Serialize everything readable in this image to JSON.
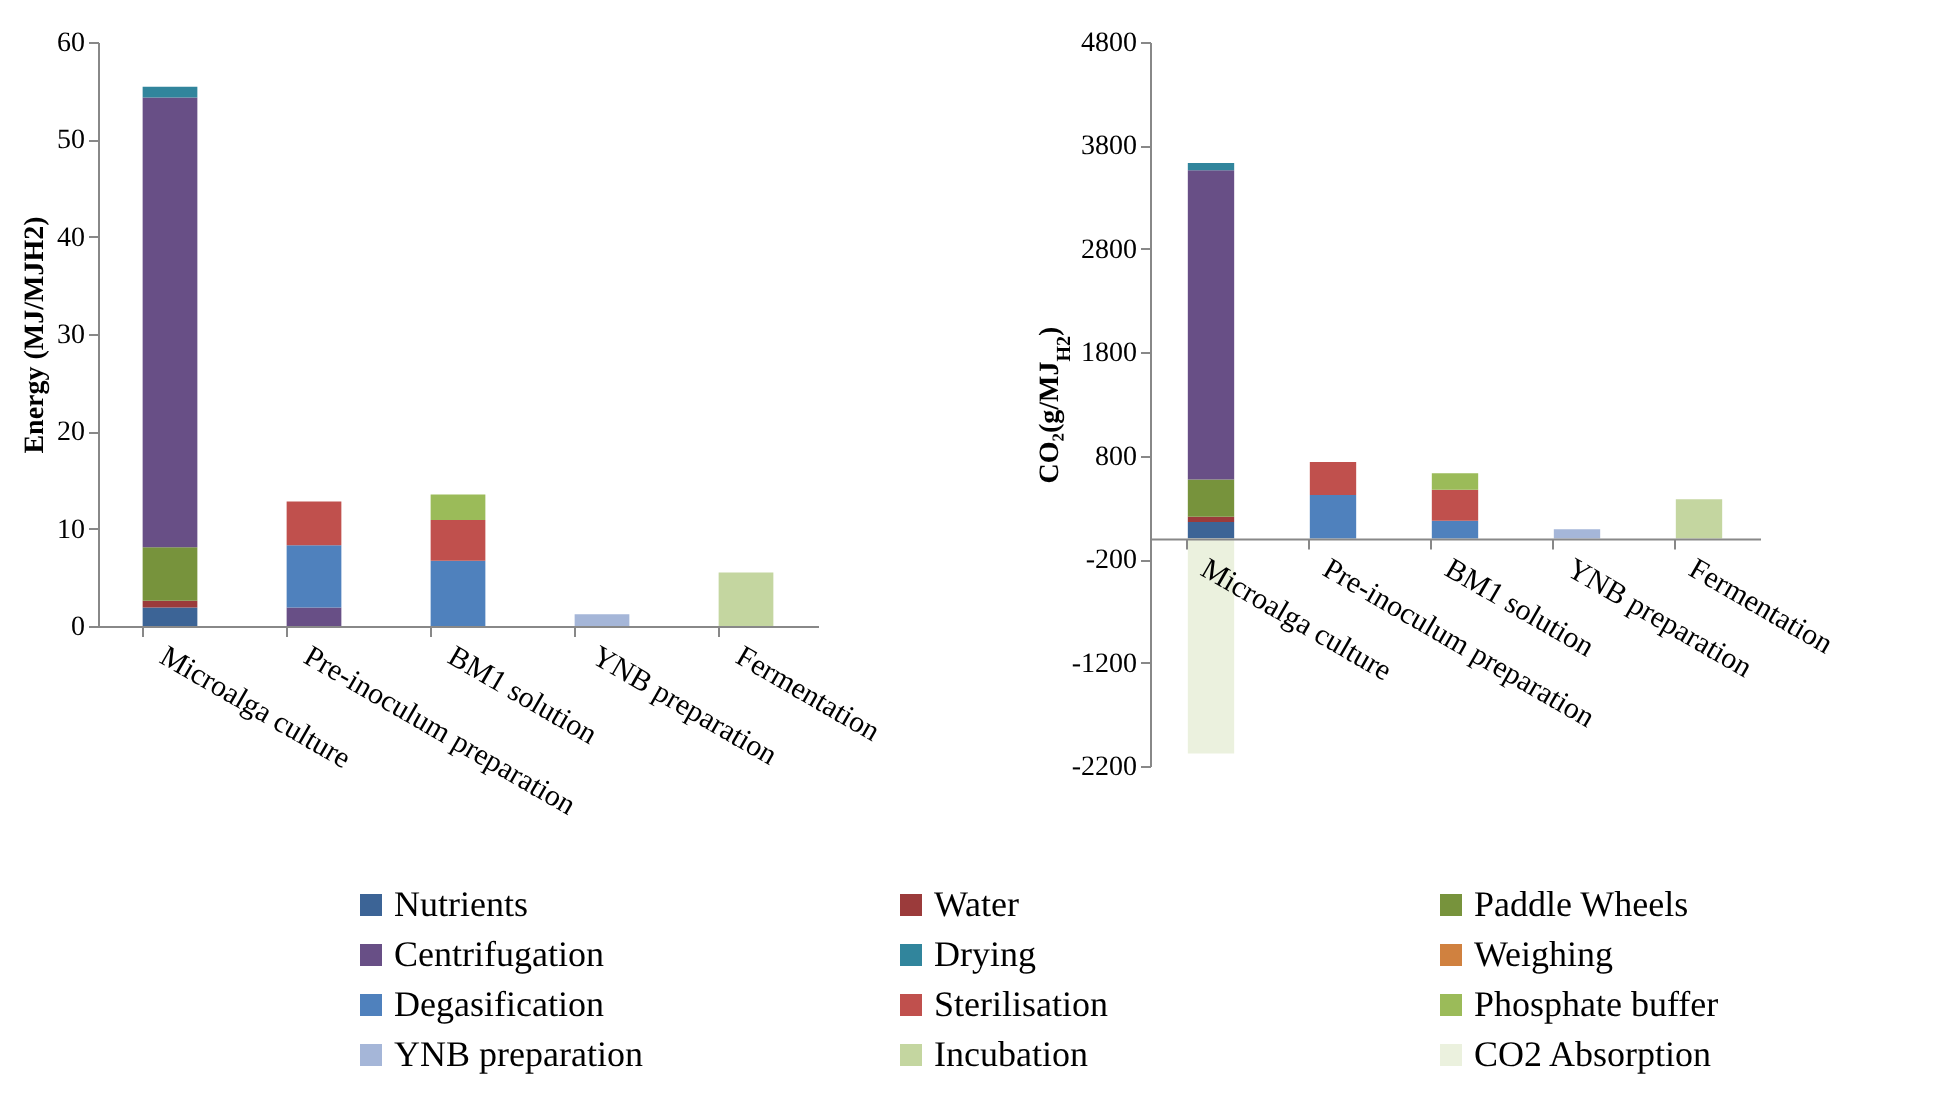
{
  "chart_data": [
    {
      "type": "bar",
      "stacked": true,
      "ylabel": "Energy (MJ/MJH2)",
      "ylim": [
        0,
        60
      ],
      "yticks": [
        0,
        10,
        20,
        30,
        40,
        50,
        60
      ],
      "legend": "bottom",
      "categories": [
        "Microalga culture",
        "Pre-inoculum preparation",
        "BM1 solution",
        "YNB preparation",
        "Fermentation"
      ],
      "series": [
        {
          "name": "Nutrients",
          "color": "#3c6496",
          "values": [
            1.9,
            null,
            null,
            null,
            null
          ]
        },
        {
          "name": "Water",
          "color": "#9b3b3b",
          "values": [
            0.7,
            null,
            null,
            null,
            null
          ]
        },
        {
          "name": "Paddle Wheels",
          "color": "#77933c",
          "values": [
            5.5,
            null,
            null,
            null,
            null
          ]
        },
        {
          "name": "Centrifugation",
          "color": "#684f86",
          "values": [
            46.2,
            1.9,
            null,
            null,
            null
          ]
        },
        {
          "name": "Drying",
          "color": "#31859c",
          "values": [
            1.1,
            null,
            null,
            null,
            null
          ]
        },
        {
          "name": "Degasification",
          "color": "#4f81bd",
          "values": [
            null,
            6.4,
            6.7,
            null,
            null
          ]
        },
        {
          "name": "Sterilisation",
          "color": "#c0504d",
          "values": [
            null,
            4.5,
            4.2,
            null,
            null
          ]
        },
        {
          "name": "Phosphate buffer",
          "color": "#9bbb59",
          "values": [
            null,
            null,
            2.6,
            null,
            null
          ]
        },
        {
          "name": "YNB preparation",
          "color": "#a5b6d8",
          "values": [
            null,
            null,
            null,
            1.2,
            null
          ]
        },
        {
          "name": "Incubation",
          "color": "#c4d6a0",
          "values": [
            null,
            null,
            null,
            null,
            5.5
          ]
        }
      ]
    },
    {
      "type": "bar",
      "stacked": true,
      "ylabel": "CO₂(g/MJ$_{H2}$)",
      "ylim": [
        -2200,
        4800
      ],
      "yticks": [
        -2200,
        -1200,
        -200,
        800,
        1800,
        2800,
        3800,
        4800
      ],
      "legend": "bottom",
      "categories": [
        "Microalga culture",
        "Pre-inoculum preparation",
        "BM1 solution",
        "YNB preparation",
        "Fermentation"
      ],
      "series": [
        {
          "name": "Nutrients",
          "color": "#3c6496",
          "values": [
            160,
            null,
            null,
            null,
            null
          ]
        },
        {
          "name": "Water",
          "color": "#9b3b3b",
          "values": [
            50,
            null,
            null,
            null,
            null
          ]
        },
        {
          "name": "Paddle Wheels",
          "color": "#77933c",
          "values": [
            360,
            null,
            null,
            null,
            null
          ]
        },
        {
          "name": "Centrifugation",
          "color": "#684f86",
          "values": [
            2990,
            null,
            null,
            null,
            null
          ]
        },
        {
          "name": "Drying",
          "color": "#31859c",
          "values": [
            70,
            null,
            null,
            null,
            null
          ]
        },
        {
          "name": "Weighing",
          "color": "#d0813f",
          "values": [
            null,
            null,
            null,
            null,
            null
          ]
        },
        {
          "name": "Degasification",
          "color": "#4f81bd",
          "values": [
            null,
            420,
            170,
            null,
            null
          ]
        },
        {
          "name": "Sterilisation",
          "color": "#c0504d",
          "values": [
            null,
            320,
            300,
            null,
            null
          ]
        },
        {
          "name": "Phosphate buffer",
          "color": "#9bbb59",
          "values": [
            null,
            null,
            160,
            null,
            null
          ]
        },
        {
          "name": "YNB preparation",
          "color": "#a5b6d8",
          "values": [
            null,
            null,
            null,
            90,
            null
          ]
        },
        {
          "name": "Incubation",
          "color": "#c4d6a0",
          "values": [
            null,
            null,
            null,
            null,
            380
          ]
        },
        {
          "name": "CO2 Absorption",
          "color": "#ebf1de",
          "values": [
            -2080,
            null,
            null,
            null,
            null
          ]
        }
      ]
    }
  ]
}
